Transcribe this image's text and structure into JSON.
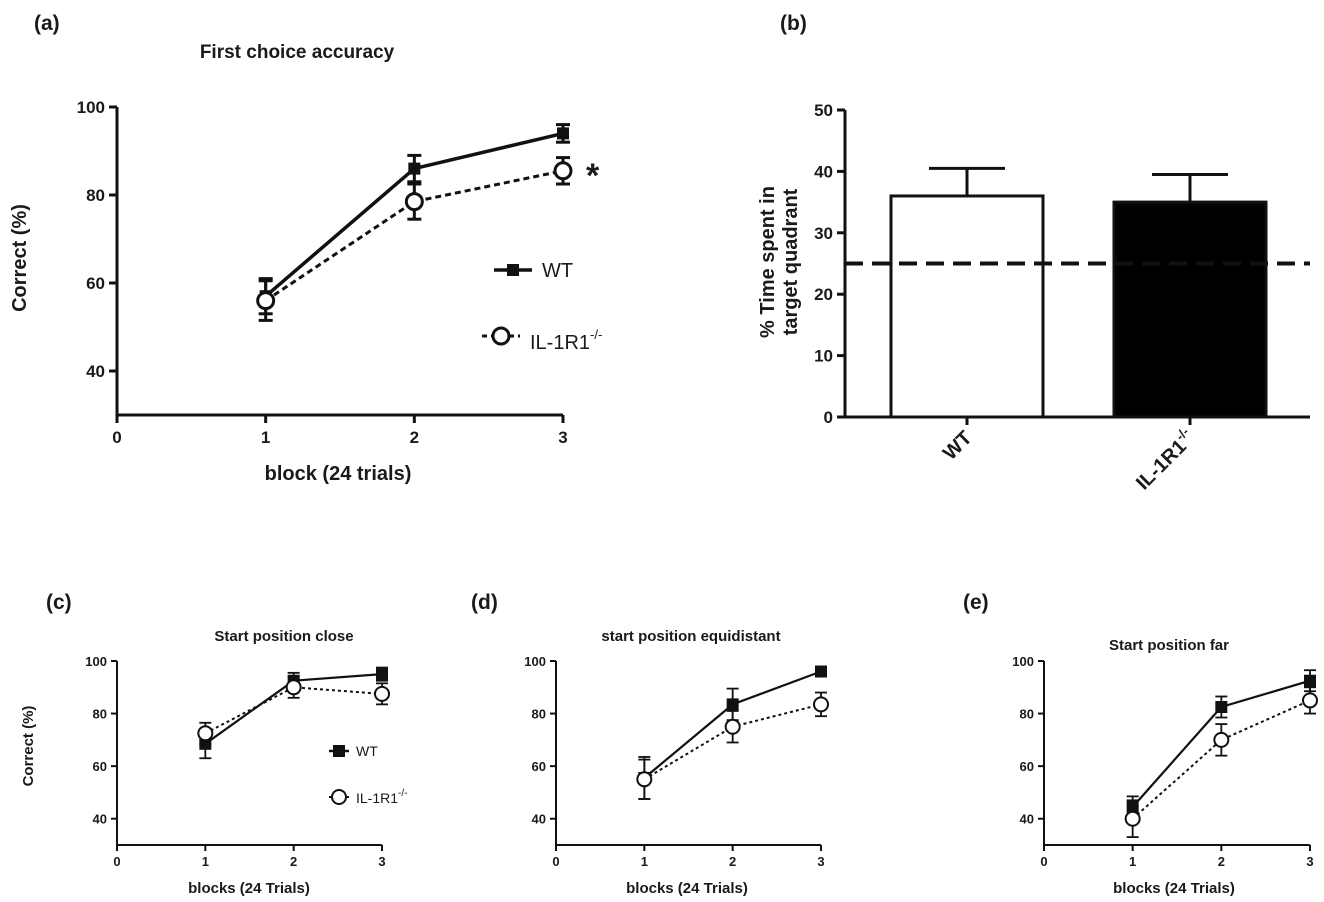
{
  "chart_data": [
    {
      "id": "a",
      "panel_label": "(a)",
      "type": "line",
      "title": "First choice accuracy",
      "xlabel": "block (24 trials)",
      "ylabel": "Correct (%)",
      "x": [
        1,
        2,
        3
      ],
      "xlim": [
        0,
        3
      ],
      "xticks": [
        0,
        1,
        2,
        3
      ],
      "ylim": [
        30,
        100
      ],
      "yticks": [
        40,
        60,
        80,
        100
      ],
      "series": [
        {
          "name": "WT",
          "values": [
            57,
            86,
            94
          ],
          "errors": [
            4,
            3,
            2
          ],
          "marker": "square-filled",
          "line": "solid"
        },
        {
          "name": "IL-1R1",
          "name_sup": "-/-",
          "values": [
            56,
            78.5,
            85.5
          ],
          "errors": [
            4.5,
            4,
            3
          ],
          "marker": "circle-open",
          "line": "dashed"
        }
      ],
      "annotation": "*",
      "grid": false,
      "legend": "center-right"
    },
    {
      "id": "b",
      "panel_label": "(b)",
      "type": "bar",
      "title": "",
      "ylabel": "% Time spent in target quadrant",
      "ylabel_lines": [
        "% Time spent in",
        "target quadrant"
      ],
      "xlabel": "",
      "categories": [
        {
          "name": "WT",
          "sup": ""
        },
        {
          "name": "IL-1R1",
          "sup": "-/-"
        }
      ],
      "values": [
        36,
        35
      ],
      "errors": [
        4.5,
        4.5
      ],
      "fills": [
        "#ffffff",
        "#000000"
      ],
      "reference_line": 25,
      "ylim": [
        0,
        50
      ],
      "yticks": [
        0,
        10,
        20,
        30,
        40,
        50
      ],
      "grid": false
    },
    {
      "id": "c",
      "panel_label": "(c)",
      "type": "line",
      "title": "Start position close",
      "xlabel": "blocks (24 Trials)",
      "ylabel": "Correct (%)",
      "x": [
        1,
        2,
        3
      ],
      "xlim": [
        0,
        3
      ],
      "xticks": [
        0,
        1,
        2,
        3
      ],
      "ylim": [
        30,
        100
      ],
      "yticks": [
        40,
        60,
        80,
        100
      ],
      "series": [
        {
          "name": "WT",
          "values": [
            68.5,
            92.5,
            95
          ],
          "errors": [
            5.5,
            3,
            2.5
          ],
          "marker": "square-filled",
          "line": "solid"
        },
        {
          "name": "IL-1R1",
          "name_sup": "-/-",
          "values": [
            72.5,
            90,
            87.5
          ],
          "errors": [
            4,
            4,
            4
          ],
          "marker": "circle-open",
          "line": "dashed"
        }
      ],
      "grid": false,
      "legend": "bottom-right"
    },
    {
      "id": "d",
      "panel_label": "(d)",
      "type": "line",
      "title": "start position equidistant",
      "xlabel": "blocks (24 Trials)",
      "ylabel": "",
      "x": [
        1,
        2,
        3
      ],
      "xlim": [
        0,
        3
      ],
      "xticks": [
        0,
        1,
        2,
        3
      ],
      "ylim": [
        30,
        100
      ],
      "yticks": [
        40,
        60,
        80,
        100
      ],
      "series": [
        {
          "name": "WT",
          "values": [
            55.5,
            83.5,
            96
          ],
          "errors": [
            8,
            6,
            1.5
          ],
          "marker": "square-filled",
          "line": "solid"
        },
        {
          "name": "IL-1R1",
          "name_sup": "-/-",
          "values": [
            55,
            75,
            83.5
          ],
          "errors": [
            7.5,
            6,
            4.5
          ],
          "marker": "circle-open",
          "line": "dashed"
        }
      ],
      "grid": false
    },
    {
      "id": "e",
      "panel_label": "(e)",
      "type": "line",
      "title": "Start position far",
      "xlabel": "blocks (24 Trials)",
      "ylabel": "",
      "x": [
        1,
        2,
        3
      ],
      "xlim": [
        0,
        3
      ],
      "xticks": [
        0,
        1,
        2,
        3
      ],
      "ylim": [
        30,
        100
      ],
      "yticks": [
        40,
        60,
        80,
        100
      ],
      "series": [
        {
          "name": "WT",
          "values": [
            44.5,
            82.5,
            92.5
          ],
          "errors": [
            4,
            4,
            4
          ],
          "marker": "square-filled",
          "line": "solid"
        },
        {
          "name": "IL-1R1",
          "name_sup": "-/-",
          "values": [
            40,
            70,
            85
          ],
          "errors": [
            7,
            6,
            5
          ],
          "marker": "circle-open",
          "line": "dashed"
        }
      ],
      "grid": false
    }
  ]
}
